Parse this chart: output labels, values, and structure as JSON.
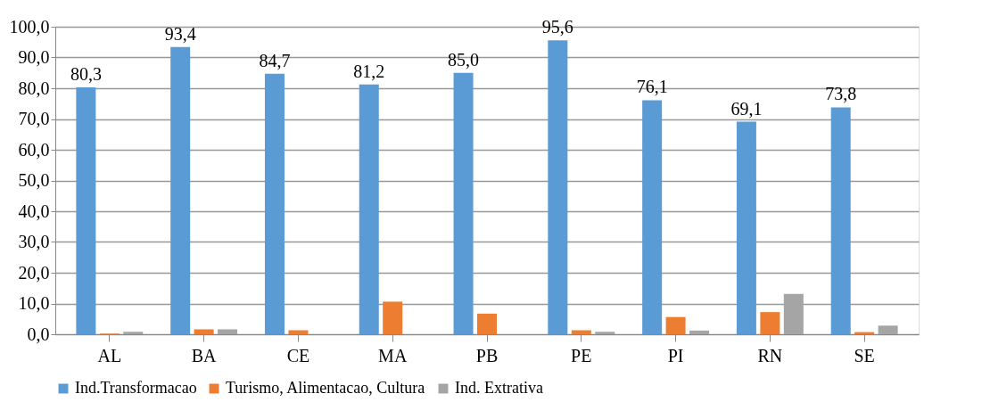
{
  "chart_data": {
    "type": "bar",
    "categories": [
      "AL",
      "BA",
      "CE",
      "MA",
      "PB",
      "PE",
      "PI",
      "RN",
      "SE"
    ],
    "series": [
      {
        "name": "Ind.Transformacao",
        "color": "#5b9bd5",
        "values": [
          80.3,
          93.4,
          84.7,
          81.2,
          85.0,
          95.6,
          76.1,
          69.1,
          73.8
        ],
        "value_labels": [
          "80,3",
          "93,4",
          "84,7",
          "81,2",
          "85,0",
          "95,6",
          "76,1",
          "69,1",
          "73,8"
        ]
      },
      {
        "name": "Turismo, Alimentacao, Cultura",
        "color": "#ed7d31",
        "values": [
          0.2,
          1.6,
          1.3,
          10.6,
          6.7,
          1.3,
          5.6,
          7.2,
          0.7
        ]
      },
      {
        "name": "Ind. Extrativa",
        "color": "#a5a5a5",
        "values": [
          0.8,
          1.6,
          null,
          null,
          null,
          0.8,
          1.2,
          13.1,
          2.8
        ]
      }
    ],
    "ylim": [
      0,
      100
    ],
    "yticks": [
      {
        "value": 0,
        "label": "0,0"
      },
      {
        "value": 10,
        "label": "10,0"
      },
      {
        "value": 20,
        "label": "20,0"
      },
      {
        "value": 30,
        "label": "30,0"
      },
      {
        "value": 40,
        "label": "40,0"
      },
      {
        "value": 50,
        "label": "50,0"
      },
      {
        "value": 60,
        "label": "60,0"
      },
      {
        "value": 70,
        "label": "70,0"
      },
      {
        "value": 80,
        "label": "80,0"
      },
      {
        "value": 90,
        "label": "90,0"
      },
      {
        "value": 100,
        "label": "100,0"
      }
    ],
    "grid": "y",
    "legend": "bottom"
  }
}
